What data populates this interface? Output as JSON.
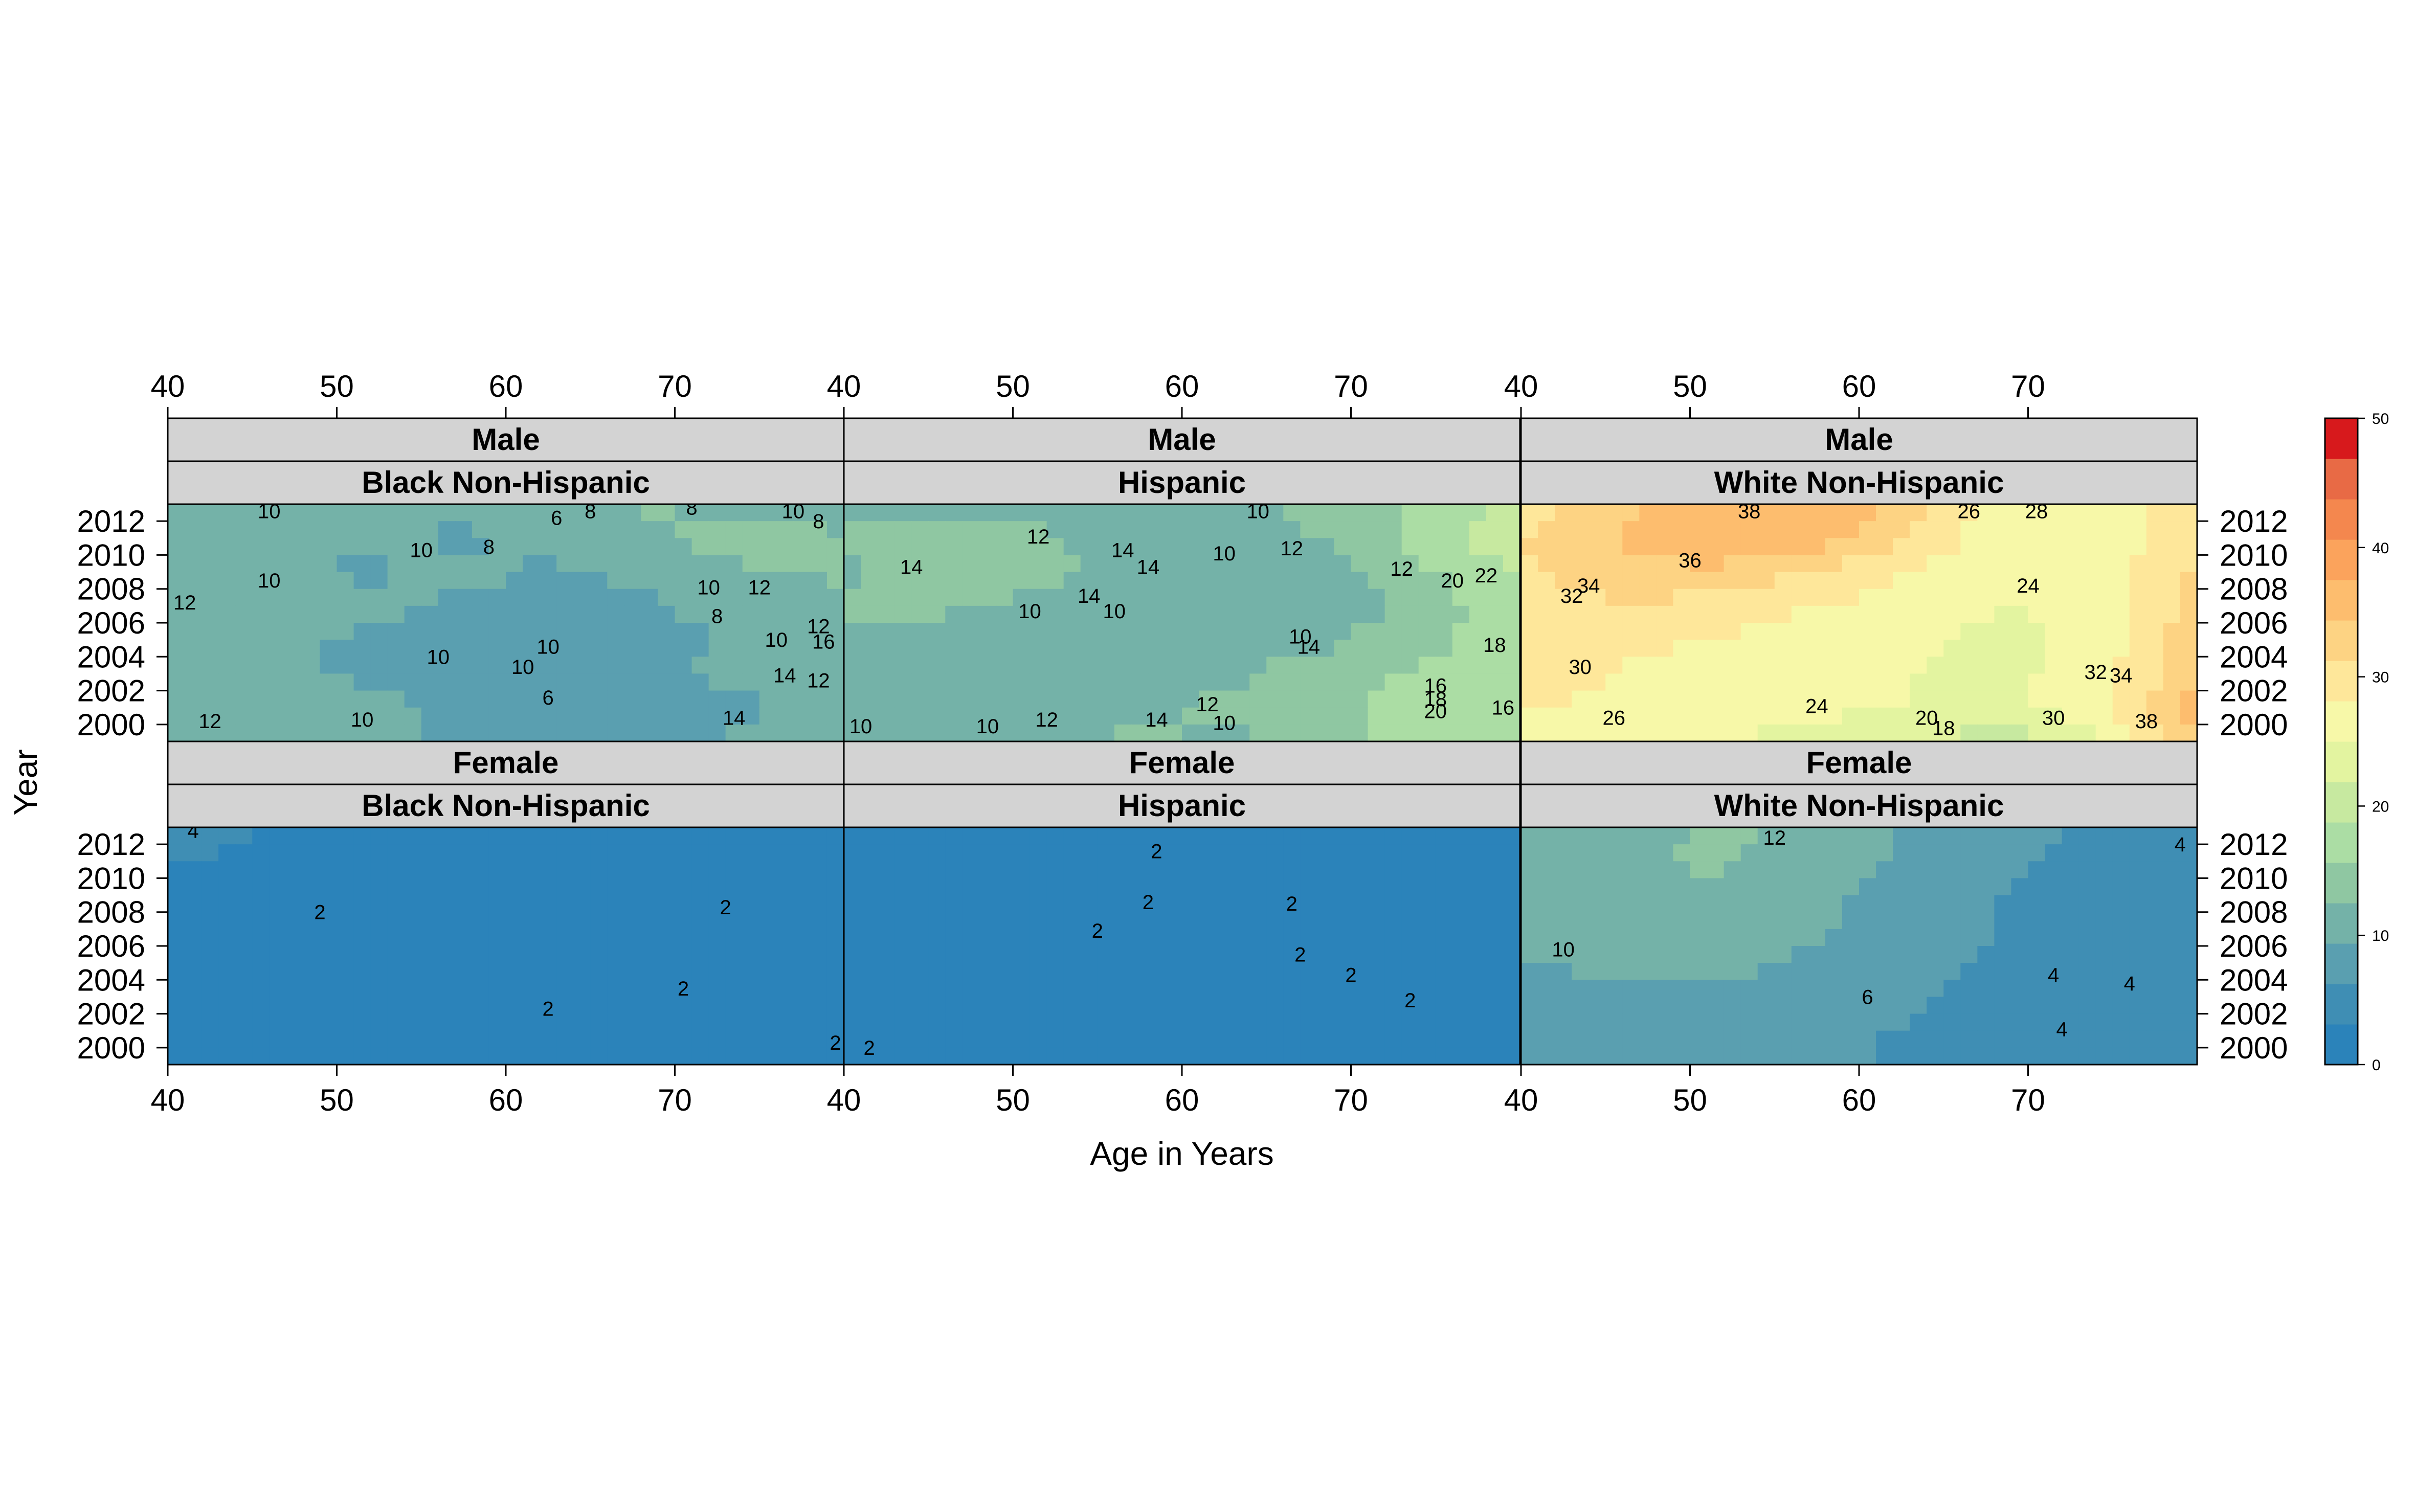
{
  "chart_data": {
    "type": "heatmap",
    "subtype": "filled contour plot (lattice levelplot)",
    "xlabel": "Age in Years",
    "ylabel": "Year",
    "x_axis": {
      "range": [
        40,
        80
      ],
      "ticks": [
        40,
        50,
        60,
        70
      ]
    },
    "y_axis": {
      "range": [
        1999,
        2013
      ],
      "ticks": [
        2000,
        2002,
        2004,
        2006,
        2008,
        2010,
        2012
      ]
    },
    "colorkey": {
      "range": [
        0,
        50
      ],
      "ticks": [
        0,
        10,
        20,
        30,
        40,
        50
      ],
      "palette": [
        "#2b83ba",
        "#3f8eb4",
        "#5a9fb0",
        "#74b2a8",
        "#8fc7a2",
        "#abdda4",
        "#c7e9a0",
        "#e3f4a0",
        "#f7f8a8",
        "#fee79a",
        "#fdd383",
        "#fdbd6e",
        "#fba35c",
        "#f4874e",
        "#e86a45",
        "#d7191c"
      ]
    },
    "panels": [
      {
        "sex": "Male",
        "group": "Black Non-Hispanic",
        "row": "top",
        "col": 0,
        "z": [
          [
            12,
            12,
            11,
            10,
            11,
            13,
            11,
            10
          ],
          [
            11,
            10,
            10,
            9,
            10,
            12,
            14,
            13
          ],
          [
            11,
            10,
            9,
            10,
            9,
            10,
            12,
            13
          ],
          [
            12,
            11,
            10,
            9,
            9,
            9,
            11,
            12
          ],
          [
            11,
            10,
            9,
            8,
            9,
            8,
            10,
            11
          ],
          [
            11,
            10,
            9,
            9,
            8,
            9,
            10,
            10
          ],
          [
            10,
            11,
            10,
            9,
            9,
            8,
            9,
            11
          ],
          [
            11,
            10,
            10,
            9,
            8,
            8,
            10,
            10
          ]
        ],
        "labels": [
          {
            "text": "10",
            "x": 46,
            "y": 2012.6
          },
          {
            "text": "10",
            "x": 55,
            "y": 2010.3
          },
          {
            "text": "8",
            "x": 59,
            "y": 2010.5
          },
          {
            "text": "8",
            "x": 65,
            "y": 2012.6
          },
          {
            "text": "6",
            "x": 63,
            "y": 2012.2
          },
          {
            "text": "8",
            "x": 71,
            "y": 2012.8
          },
          {
            "text": "10",
            "x": 77,
            "y": 2012.6
          },
          {
            "text": "8",
            "x": 78.5,
            "y": 2012.0
          },
          {
            "text": "12",
            "x": 41,
            "y": 2007.2
          },
          {
            "text": "10",
            "x": 46,
            "y": 2008.5
          },
          {
            "text": "10",
            "x": 72,
            "y": 2008.1
          },
          {
            "text": "12",
            "x": 75,
            "y": 2008.1
          },
          {
            "text": "8",
            "x": 72.5,
            "y": 2006.4
          },
          {
            "text": "10",
            "x": 76,
            "y": 2005.0
          },
          {
            "text": "12",
            "x": 78.5,
            "y": 2005.8
          },
          {
            "text": "16",
            "x": 78.8,
            "y": 2004.9
          },
          {
            "text": "10",
            "x": 62.5,
            "y": 2004.6
          },
          {
            "text": "10",
            "x": 56,
            "y": 2004.0
          },
          {
            "text": "10",
            "x": 61,
            "y": 2003.4
          },
          {
            "text": "14",
            "x": 76.5,
            "y": 2002.9
          },
          {
            "text": "12",
            "x": 78.5,
            "y": 2002.6
          },
          {
            "text": "6",
            "x": 62.5,
            "y": 2001.6
          },
          {
            "text": "12",
            "x": 42.5,
            "y": 2000.2
          },
          {
            "text": "10",
            "x": 51.5,
            "y": 2000.3
          },
          {
            "text": "14",
            "x": 73.5,
            "y": 2000.4
          }
        ]
      },
      {
        "sex": "Male",
        "group": "Hispanic",
        "row": "top",
        "col": 1,
        "z": [
          [
            11,
            12,
            12,
            11,
            12,
            13,
            16,
            20
          ],
          [
            13,
            14,
            13,
            11,
            11,
            13,
            17,
            21
          ],
          [
            12,
            14,
            13,
            12,
            10,
            11,
            15,
            19
          ],
          [
            13,
            13,
            12,
            12,
            11,
            10,
            14,
            18
          ],
          [
            12,
            11,
            12,
            11,
            11,
            12,
            15,
            17
          ],
          [
            11,
            10,
            11,
            12,
            12,
            14,
            16,
            16
          ],
          [
            12,
            11,
            11,
            12,
            13,
            15,
            17,
            18
          ],
          [
            10,
            11,
            12,
            13,
            12,
            14,
            17,
            19
          ]
        ],
        "labels": [
          {
            "text": "12",
            "x": 51.5,
            "y": 2011.1
          },
          {
            "text": "10",
            "x": 64.5,
            "y": 2012.6
          },
          {
            "text": "14",
            "x": 44,
            "y": 2009.3
          },
          {
            "text": "14",
            "x": 56.5,
            "y": 2010.3
          },
          {
            "text": "14",
            "x": 58,
            "y": 2009.3
          },
          {
            "text": "10",
            "x": 62.5,
            "y": 2010.1
          },
          {
            "text": "12",
            "x": 66.5,
            "y": 2010.4
          },
          {
            "text": "12",
            "x": 73,
            "y": 2009.2
          },
          {
            "text": "20",
            "x": 76,
            "y": 2008.5
          },
          {
            "text": "22",
            "x": 78,
            "y": 2008.8
          },
          {
            "text": "14",
            "x": 54.5,
            "y": 2007.6
          },
          {
            "text": "10",
            "x": 51,
            "y": 2006.7
          },
          {
            "text": "10",
            "x": 56,
            "y": 2006.7
          },
          {
            "text": "10",
            "x": 67,
            "y": 2005.2
          },
          {
            "text": "14",
            "x": 67.5,
            "y": 2004.6
          },
          {
            "text": "18",
            "x": 78.5,
            "y": 2004.7
          },
          {
            "text": "16",
            "x": 75,
            "y": 2002.3
          },
          {
            "text": "18",
            "x": 75,
            "y": 2001.5
          },
          {
            "text": "20",
            "x": 75,
            "y": 2000.8
          },
          {
            "text": "10",
            "x": 41,
            "y": 1999.9
          },
          {
            "text": "10",
            "x": 48.5,
            "y": 1999.9
          },
          {
            "text": "12",
            "x": 52,
            "y": 2000.3
          },
          {
            "text": "14",
            "x": 58.5,
            "y": 2000.3
          },
          {
            "text": "12",
            "x": 61.5,
            "y": 2001.2
          },
          {
            "text": "10",
            "x": 62.5,
            "y": 2000.1
          },
          {
            "text": "16",
            "x": 79,
            "y": 2001.0
          }
        ]
      },
      {
        "sex": "Male",
        "group": "White Non-Hispanic",
        "row": "top",
        "col": 2,
        "z": [
          [
            29,
            33,
            37,
            38,
            33,
            26,
            27,
            30
          ],
          [
            31,
            35,
            37,
            36,
            31,
            26,
            26,
            31
          ],
          [
            31,
            33,
            34,
            31,
            28,
            25,
            26,
            32
          ],
          [
            30,
            31,
            30,
            28,
            27,
            25,
            26,
            32
          ],
          [
            30,
            29,
            28,
            27,
            26,
            24,
            26,
            34
          ],
          [
            29,
            28,
            27,
            26,
            25,
            24,
            27,
            34
          ],
          [
            28,
            28,
            27,
            26,
            25,
            24,
            27,
            36
          ],
          [
            26,
            26,
            25,
            24,
            22,
            20,
            24,
            34
          ]
        ],
        "labels": [
          {
            "text": "38",
            "x": 53.5,
            "y": 2012.6
          },
          {
            "text": "26",
            "x": 66.5,
            "y": 2012.6
          },
          {
            "text": "28",
            "x": 70.5,
            "y": 2012.6
          },
          {
            "text": "36",
            "x": 50,
            "y": 2009.7
          },
          {
            "text": "34",
            "x": 44,
            "y": 2008.2
          },
          {
            "text": "32",
            "x": 43,
            "y": 2007.6
          },
          {
            "text": "24",
            "x": 70,
            "y": 2008.2
          },
          {
            "text": "30",
            "x": 43.5,
            "y": 2003.4
          },
          {
            "text": "32",
            "x": 74,
            "y": 2003.1
          },
          {
            "text": "34",
            "x": 75.5,
            "y": 2002.9
          },
          {
            "text": "24",
            "x": 57.5,
            "y": 2001.1
          },
          {
            "text": "26",
            "x": 45.5,
            "y": 2000.4
          },
          {
            "text": "20",
            "x": 64,
            "y": 2000.4
          },
          {
            "text": "18",
            "x": 65,
            "y": 1999.8
          },
          {
            "text": "30",
            "x": 71.5,
            "y": 2000.4
          },
          {
            "text": "38",
            "x": 77,
            "y": 2000.2
          }
        ]
      },
      {
        "sex": "Female",
        "group": "Black Non-Hispanic",
        "row": "bottom",
        "col": 0,
        "z": [
          [
            4,
            3,
            3,
            2,
            3,
            2,
            2,
            2
          ],
          [
            3,
            3,
            2,
            2,
            2,
            2,
            2,
            2
          ],
          [
            3,
            3,
            2,
            1,
            2,
            2,
            2,
            2
          ],
          [
            3,
            3,
            2,
            2,
            2,
            2,
            2,
            2
          ],
          [
            3,
            3,
            2,
            2,
            2,
            2,
            2,
            2
          ],
          [
            3,
            3,
            2,
            2,
            2,
            3,
            2,
            2
          ],
          [
            3,
            3,
            2,
            2,
            2,
            2,
            2,
            3
          ],
          [
            3,
            2,
            2,
            2,
            2,
            2,
            2,
            2
          ]
        ],
        "labels": [
          {
            "text": "4",
            "x": 41.5,
            "y": 2012.8
          },
          {
            "text": "2",
            "x": 49,
            "y": 2008.0
          },
          {
            "text": "2",
            "x": 73,
            "y": 2008.3
          },
          {
            "text": "2",
            "x": 62.5,
            "y": 2002.3
          },
          {
            "text": "2",
            "x": 70.5,
            "y": 2003.5
          },
          {
            "text": "2",
            "x": 79.5,
            "y": 2000.3
          }
        ]
      },
      {
        "sex": "Female",
        "group": "Hispanic",
        "row": "bottom",
        "col": 1,
        "z": [
          [
            3,
            3,
            3,
            2,
            2,
            2,
            2,
            2
          ],
          [
            3,
            3,
            3,
            2,
            2,
            2,
            2,
            2
          ],
          [
            3,
            3,
            2,
            2,
            2,
            2,
            2,
            2
          ],
          [
            3,
            3,
            2,
            2,
            2,
            2,
            2,
            2
          ],
          [
            3,
            3,
            2,
            2,
            2,
            2,
            2,
            2
          ],
          [
            3,
            3,
            3,
            2,
            2,
            2,
            2,
            2
          ],
          [
            3,
            3,
            3,
            2,
            2,
            2,
            1,
            2
          ],
          [
            2,
            2,
            2,
            2,
            2,
            2,
            1,
            1
          ]
        ],
        "labels": [
          {
            "text": "2",
            "x": 58.5,
            "y": 2011.6
          },
          {
            "text": "2",
            "x": 66.5,
            "y": 2008.5
          },
          {
            "text": "2",
            "x": 58,
            "y": 2008.6
          },
          {
            "text": "2",
            "x": 55,
            "y": 2006.9
          },
          {
            "text": "2",
            "x": 67,
            "y": 2005.5
          },
          {
            "text": "2",
            "x": 70,
            "y": 2004.3
          },
          {
            "text": "2",
            "x": 73.5,
            "y": 2002.8
          },
          {
            "text": "2",
            "x": 41.5,
            "y": 2000.0
          }
        ]
      },
      {
        "sex": "Female",
        "group": "White Non-Hispanic",
        "row": "bottom",
        "col": 2,
        "z": [
          [
            10,
            11,
            13,
            12,
            9,
            7,
            6,
            5
          ],
          [
            10,
            12,
            13,
            11,
            9,
            7,
            5,
            5
          ],
          [
            10,
            11,
            12,
            10,
            8,
            6,
            5,
            5
          ],
          [
            11,
            11,
            11,
            10,
            8,
            6,
            5,
            4
          ],
          [
            9,
            10,
            10,
            9,
            7,
            6,
            4,
            4
          ],
          [
            9,
            9,
            9,
            8,
            7,
            5,
            4,
            4
          ],
          [
            8,
            8,
            8,
            7,
            6,
            5,
            5,
            4
          ],
          [
            8,
            8,
            7,
            7,
            6,
            5,
            5,
            5
          ]
        ],
        "labels": [
          {
            "text": "12",
            "x": 55,
            "y": 2012.4
          },
          {
            "text": "10",
            "x": 42.5,
            "y": 2005.8
          },
          {
            "text": "6",
            "x": 60.5,
            "y": 2003.0
          },
          {
            "text": "4",
            "x": 79,
            "y": 2012.0
          },
          {
            "text": "4",
            "x": 71.5,
            "y": 2004.3
          },
          {
            "text": "4",
            "x": 76,
            "y": 2003.8
          },
          {
            "text": "4",
            "x": 72,
            "y": 2001.1
          }
        ]
      }
    ]
  }
}
